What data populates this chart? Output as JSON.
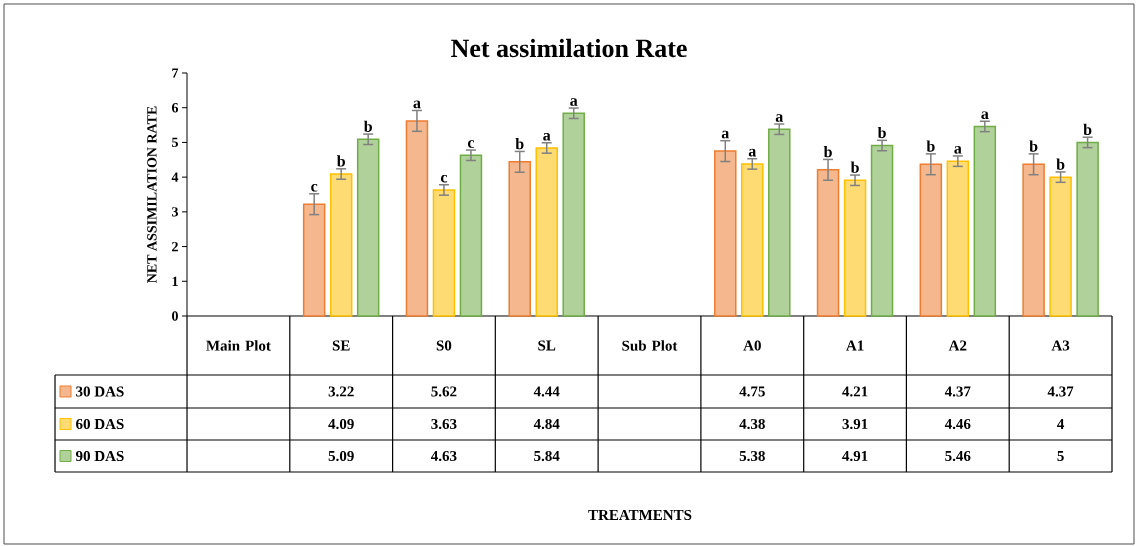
{
  "chart_data": {
    "type": "bar",
    "title": "Net assimilation  Rate",
    "ylabel": "NET ASSIMILATION RATE",
    "categories": [
      "Main Plot",
      "SE",
      "S0",
      "SL",
      "Sub Plot",
      "A0",
      "A1",
      "A2",
      "A3"
    ],
    "series": [
      {
        "name": "30 DAS",
        "color": "#ed7d31",
        "values": [
          null,
          3.22,
          5.62,
          4.44,
          null,
          4.75,
          4.21,
          4.37,
          4.37
        ],
        "errors": [
          null,
          0.3,
          0.3,
          0.3,
          null,
          0.3,
          0.3,
          0.3,
          0.3
        ],
        "value_labels": [
          null,
          "3.22",
          "5.62",
          "4.44",
          null,
          "4.75",
          "4.21",
          "4.37",
          "4.37"
        ]
      },
      {
        "name": "60 DAS",
        "color": "#ffc000",
        "values": [
          null,
          4.09,
          3.63,
          4.84,
          null,
          4.38,
          3.91,
          4.46,
          4
        ],
        "errors": [
          null,
          0.15,
          0.15,
          0.15,
          null,
          0.15,
          0.15,
          0.15,
          0.15
        ],
        "value_labels": [
          null,
          "4.09",
          "3.63",
          "4.84",
          null,
          "4.38",
          "3.91",
          "4.46",
          "4"
        ]
      },
      {
        "name": "90 DAS",
        "color": "#70ad47",
        "values": [
          null,
          5.09,
          4.63,
          5.84,
          null,
          5.38,
          4.91,
          5.46,
          5
        ],
        "errors": [
          null,
          0.15,
          0.15,
          0.15,
          null,
          0.15,
          0.15,
          0.15,
          0.15
        ],
        "value_labels": [
          null,
          "5.09",
          "4.63",
          "5.84",
          null,
          "5.38",
          "4.91",
          "5.46",
          "5"
        ]
      }
    ],
    "annotations": [
      "c",
      "b",
      "b",
      "a",
      "c",
      "c",
      "b",
      "a",
      "a",
      "a",
      "a",
      "a",
      "b",
      "b",
      "b",
      "b",
      "a",
      "a",
      "b",
      "b",
      "b",
      "TREATMENTS"
    ],
    "ylim": [
      0,
      7
    ],
    "yticks": [
      0,
      1,
      2,
      3,
      4,
      5,
      6,
      7
    ],
    "grid": false,
    "legend": "bottom left"
  }
}
